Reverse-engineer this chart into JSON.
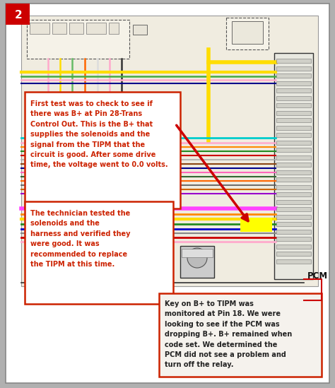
{
  "bg_color": "#b0b0b0",
  "page_bg": "#ffffff",
  "diagram_bg": "#f0ece0",
  "badge_color": "#cc0000",
  "badge_text": "2",
  "pcm_label": "PCM",
  "annotation1": {
    "text": "First test was to check to see if\nthere was B+ at Pin 28-Trans\nControl Out. This is the B+ that\nsupplies the solenoids and the\nsignal from the TIPM that the\ncircuit is good. After some drive\ntime, the voltage went to 0.0 volts.",
    "text_color": "#cc2200",
    "border_color": "#cc2200",
    "bg_color": "#ffffff"
  },
  "annotation2": {
    "text": "The technician tested the\nsolenoids and the\nharness and verified they\nwere good. It was\nrecommended to replace\nthe TIPM at this time.",
    "text_color": "#cc2200",
    "border_color": "#cc2200",
    "bg_color": "#ffffff"
  },
  "annotation3": {
    "text": "Key on B+ to TIPM was\nmonitored at Pin 18. We were\nlooking to see if the PCM was\ndropping B+. B+ remained when\ncode set. We determined the\nPCM did not see a problem and\nturn off the relay.",
    "text_color": "#222222",
    "border_color": "#cc2200",
    "bg_color": "#f5f2ed"
  },
  "wires_upper": [
    {
      "color": "#ffaacc",
      "lw": 1.8
    },
    {
      "color": "#ffdd00",
      "lw": 2.5
    },
    {
      "color": "#44aa44",
      "lw": 1.5
    },
    {
      "color": "#ff6600",
      "lw": 1.5
    },
    {
      "color": "#333333",
      "lw": 1.2
    }
  ],
  "wires_mid": [
    {
      "color": "#00cccc",
      "lw": 1.8
    },
    {
      "color": "#ffaacc",
      "lw": 1.5
    },
    {
      "color": "#ff8800",
      "lw": 1.5
    },
    {
      "color": "#228b22",
      "lw": 1.5
    },
    {
      "color": "#cc0000",
      "lw": 1.5
    },
    {
      "color": "#999999",
      "lw": 1.2
    },
    {
      "color": "#8b4513",
      "lw": 1.5
    },
    {
      "color": "#00008b",
      "lw": 1.5
    },
    {
      "color": "#ff44aa",
      "lw": 1.5
    },
    {
      "color": "#228b22",
      "lw": 1.5
    }
  ],
  "wires_lower": [
    {
      "color": "#ff44ff",
      "lw": 3.5
    },
    {
      "color": "#ff8800",
      "lw": 2.0
    },
    {
      "color": "#ffdd00",
      "lw": 3.0
    },
    {
      "color": "#228b22",
      "lw": 2.0
    },
    {
      "color": "#0000cc",
      "lw": 2.0
    },
    {
      "color": "#888888",
      "lw": 1.5
    }
  ]
}
